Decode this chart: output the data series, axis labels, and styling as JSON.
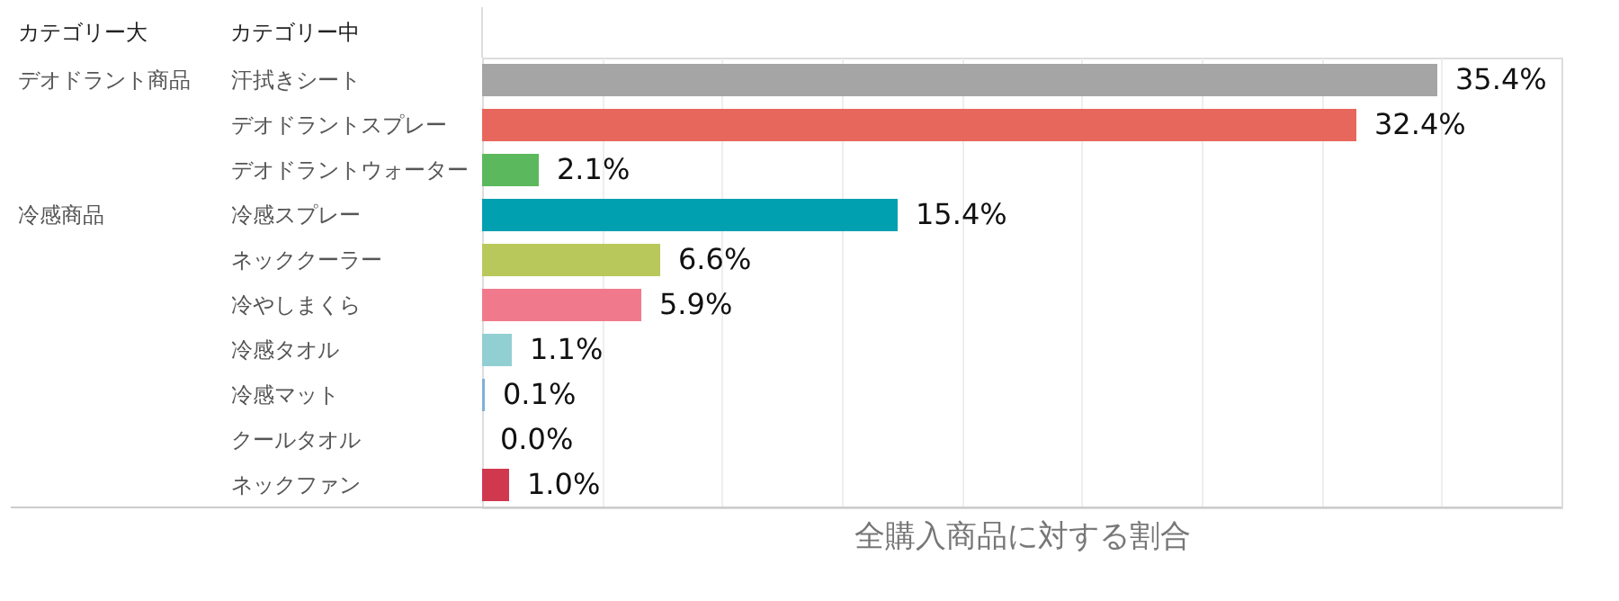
{
  "chart_data": {
    "type": "bar",
    "orientation": "horizontal",
    "xlabel": "全購入商品に対する割合",
    "categories": [
      "汗拭きシート",
      "デオドラントスプレー",
      "デオドラントウォーター",
      "冷感スプレー",
      "ネッククーラー",
      "冷やしまくら",
      "冷感タオル",
      "冷感マット",
      "クールタオル",
      "ネックファン"
    ],
    "values": [
      35.4,
      32.4,
      2.1,
      15.4,
      6.6,
      5.9,
      1.1,
      0.1,
      0.0,
      1.0
    ],
    "value_labels": [
      "35.4%",
      "32.4%",
      "2.1%",
      "15.4%",
      "6.6%",
      "5.9%",
      "1.1%",
      "0.1%",
      "0.0%",
      "1.0%"
    ],
    "colors": [
      "#a5a5a5",
      "#e8675c",
      "#5cb85c",
      "#00a0b0",
      "#b9c85a",
      "#f07a8c",
      "#92cfd2",
      "#7fb0d8",
      "#cccccc",
      "#d0384e"
    ],
    "xlim": [
      0,
      40
    ],
    "xticks": [
      {
        "value": 4.44,
        "label": null
      },
      {
        "value": 8.89,
        "label": null
      },
      {
        "value": 13.33,
        "label": null
      },
      {
        "value": 17.78,
        "label": null
      },
      {
        "value": 22.22,
        "label": null
      },
      {
        "value": 26.67,
        "label": null
      },
      {
        "value": 31.11,
        "label": null
      },
      {
        "value": 35.56,
        "label": null
      }
    ],
    "grid": "x",
    "tick_labels": "y",
    "annotations": [
      "カテゴリー大",
      "カテゴリー中",
      "デオドラント商品",
      "冷感商品"
    ]
  }
}
